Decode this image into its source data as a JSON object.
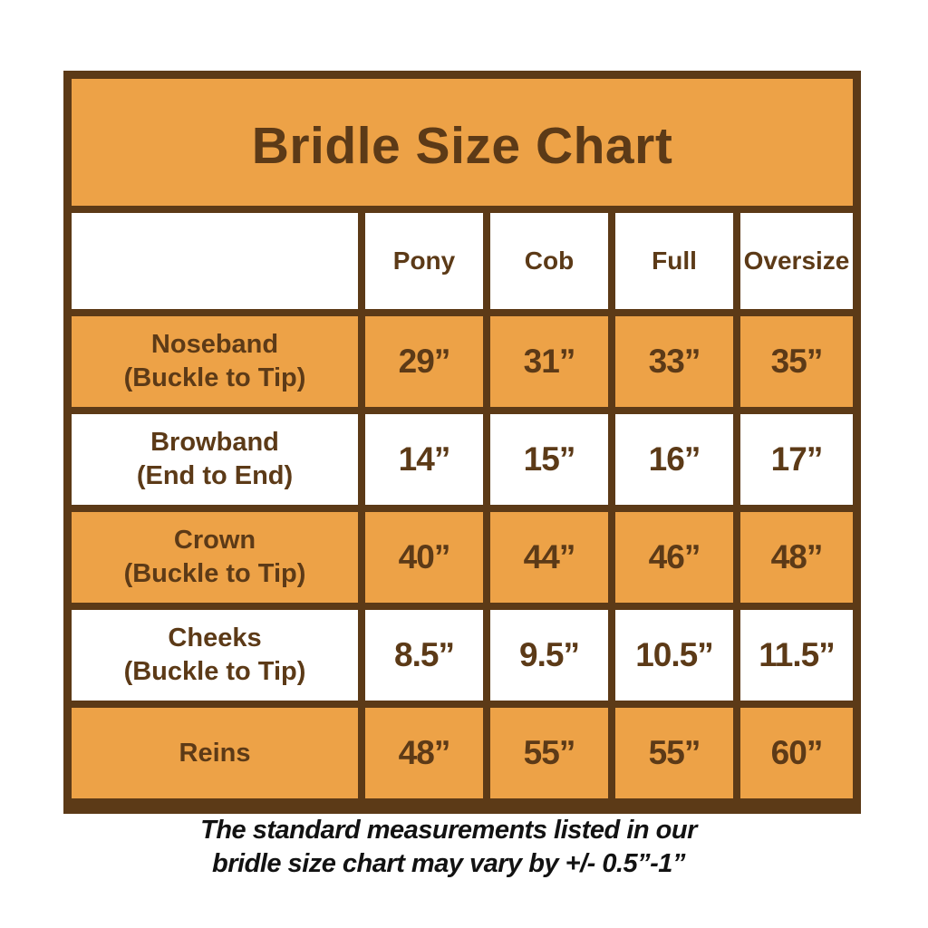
{
  "title": "Bridle Size Chart",
  "colors": {
    "orange": "#EDA247",
    "brown": "#5C3A17",
    "row_alt_white": "#FFFFFF",
    "footnote_text": "#121212"
  },
  "chart_data": {
    "type": "table",
    "title": "Bridle Size Chart",
    "columns": [
      "",
      "Pony",
      "Cob",
      "Full",
      "Oversize"
    ],
    "rows": [
      {
        "label": "Noseband",
        "sublabel": "(Buckle to Tip)",
        "values": [
          "29”",
          "31”",
          "33”",
          "35”"
        ],
        "background": "orange"
      },
      {
        "label": "Browband",
        "sublabel": "(End to End)",
        "values": [
          "14”",
          "15”",
          "16”",
          "17”"
        ],
        "background": "white"
      },
      {
        "label": "Crown",
        "sublabel": "(Buckle to Tip)",
        "values": [
          "40”",
          "44”",
          "46”",
          "48”"
        ],
        "background": "orange"
      },
      {
        "label": "Cheeks",
        "sublabel": "(Buckle to Tip)",
        "values": [
          "8.5”",
          "9.5”",
          "10.5”",
          "11.5”"
        ],
        "background": "white"
      },
      {
        "label": "Reins",
        "sublabel": "",
        "values": [
          "48”",
          "55”",
          "55”",
          "60”"
        ],
        "background": "orange"
      }
    ],
    "layout": {
      "header_background": "white",
      "alternating_rows": true,
      "grid_lines": "brown",
      "legend": "none"
    }
  },
  "footnote": {
    "line1": "The standard measurements listed in our",
    "line2": "bridle size chart may vary by +/- 0.5”-1”"
  }
}
